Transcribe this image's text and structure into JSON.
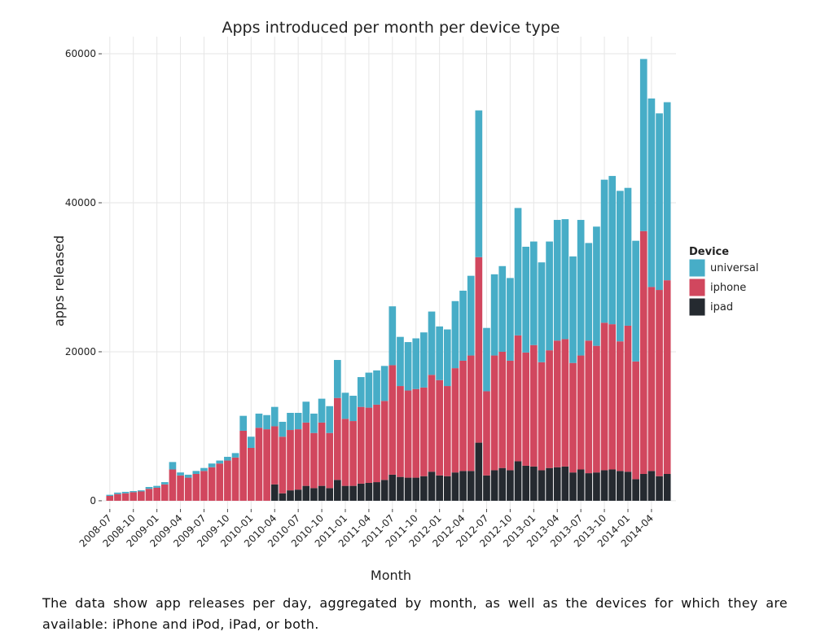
{
  "chart_data": {
    "type": "stacked_bar",
    "title": "Apps introduced per month per device type",
    "x_label": "Month",
    "y_label": "apps released",
    "legend_title": "Device",
    "legend_position": "right",
    "caption": "The data show app releases per day, aggregated by month, as well as the devices for which they are available: iPhone and iPod, iPad, or both.",
    "categories": [
      "2008-07",
      null,
      null,
      "2008-10",
      null,
      null,
      "2009-01",
      null,
      null,
      "2009-04",
      null,
      null,
      "2009-07",
      null,
      null,
      "2009-10",
      null,
      null,
      "2010-01",
      null,
      null,
      "2010-04",
      null,
      null,
      "2010-07",
      null,
      null,
      "2010-10",
      null,
      null,
      "2011-01",
      null,
      null,
      "2011-04",
      null,
      null,
      "2011-07",
      null,
      null,
      "2011-10",
      null,
      null,
      "2012-01",
      null,
      null,
      "2012-04",
      null,
      null,
      "2012-07",
      null,
      null,
      "2012-10",
      null,
      null,
      "2013-01",
      null,
      null,
      "2013-04",
      null,
      null,
      "2013-07",
      null,
      null,
      "2013-10",
      null,
      null,
      "2014-01",
      null,
      null,
      "2014-04",
      null,
      null
    ],
    "series": [
      {
        "name": "ipad",
        "color": "#252a30",
        "values": [
          0,
          0,
          0,
          0,
          0,
          0,
          0,
          0,
          0,
          0,
          0,
          0,
          0,
          0,
          0,
          0,
          0,
          0,
          0,
          0,
          0,
          2200,
          1000,
          1400,
          1500,
          2000,
          1700,
          2000,
          1700,
          2800,
          2000,
          2000,
          2300,
          2400,
          2500,
          2800,
          3500,
          3200,
          3100,
          3100,
          3300,
          3900,
          3400,
          3300,
          3800,
          4000,
          4000,
          7800,
          3400,
          4100,
          4400,
          4100,
          5300,
          4700,
          4600,
          4100,
          4400,
          4500,
          4600,
          3800,
          4200,
          3700,
          3800,
          4100,
          4200,
          4000,
          3900,
          2900,
          3600,
          4000,
          3300,
          3600
        ]
      },
      {
        "name": "iphone",
        "color": "#d1475e",
        "values": [
          650,
          900,
          1000,
          1150,
          1250,
          1600,
          1750,
          2200,
          4200,
          3400,
          3100,
          3600,
          4000,
          4500,
          5000,
          5400,
          5800,
          9400,
          7100,
          9800,
          9600,
          7800,
          7600,
          8100,
          8100,
          8500,
          7400,
          8500,
          7400,
          11000,
          9000,
          8700,
          10300,
          10100,
          10400,
          10600,
          14700,
          12200,
          11700,
          11900,
          11900,
          13000,
          12800,
          12100,
          14000,
          14800,
          15500,
          24900,
          11300,
          15400,
          15600,
          14700,
          16900,
          15200,
          16300,
          14500,
          15800,
          17000,
          17100,
          14700,
          15300,
          17800,
          17000,
          19800,
          19500,
          17400,
          19600,
          15800,
          32600,
          24700,
          25000,
          26000
        ]
      },
      {
        "name": "universal",
        "color": "#47adc7",
        "values": [
          150,
          200,
          200,
          150,
          150,
          250,
          250,
          300,
          1000,
          400,
          400,
          400,
          400,
          500,
          400,
          500,
          600,
          2000,
          1500,
          1900,
          1900,
          2600,
          2000,
          2300,
          2200,
          2800,
          2600,
          3200,
          3600,
          5100,
          3500,
          3400,
          4000,
          4700,
          4600,
          4700,
          7900,
          6600,
          6500,
          6800,
          7400,
          8500,
          7200,
          7600,
          9000,
          9400,
          10700,
          19700,
          8500,
          10900,
          11500,
          11100,
          17100,
          14200,
          13900,
          13400,
          14600,
          16200,
          16100,
          14300,
          18200,
          13100,
          16000,
          19200,
          19900,
          20200,
          18500,
          16200,
          23100,
          25300,
          23700,
          23900
        ]
      }
    ],
    "ylim": [
      -1100,
      62300
    ],
    "yticks": [
      0,
      20000,
      40000,
      60000
    ],
    "grid": true
  }
}
